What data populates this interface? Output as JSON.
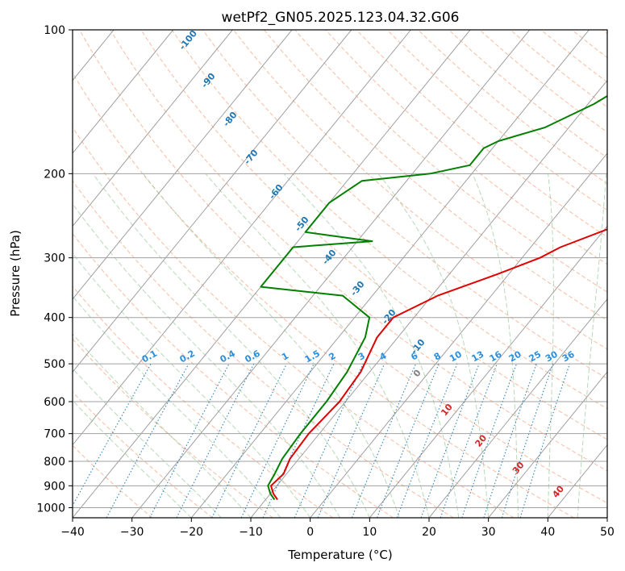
{
  "chart_data": {
    "type": "line",
    "title": "wetPf2_GN05.2025.123.04.32.G06",
    "xlabel": "Temperature (°C)",
    "ylabel": "Pressure (hPa)",
    "xlim": [
      -40,
      50
    ],
    "ylim": [
      1050,
      100
    ],
    "y_scale": "log",
    "grid": true,
    "x_ticks": [
      "−40",
      "−30",
      "−20",
      "−10",
      "0",
      "10",
      "20",
      "30",
      "40",
      "50"
    ],
    "x_tick_values": [
      -40,
      -30,
      -20,
      -10,
      0,
      10,
      20,
      30,
      40,
      50
    ],
    "y_ticks": [
      "100",
      "200",
      "300",
      "400",
      "500",
      "600",
      "700",
      "800",
      "900",
      "1000"
    ],
    "y_tick_values": [
      100,
      200,
      300,
      400,
      500,
      600,
      700,
      800,
      900,
      1000
    ],
    "colors": {
      "temperature": "#e00000",
      "dewpoint": "#008000",
      "dry_adiabat": "#f4a582",
      "moist_adiabat": "#92c592",
      "mixing_ratio": "#3182bd",
      "isotherm_grid": "#a0a0a0",
      "isotherm_label": "#1f77b4",
      "high_isotherm_label": "#d62728"
    },
    "series": [
      {
        "key": "temperature",
        "points": [
          [
            -8.0,
            962
          ],
          [
            -9.5,
            935
          ],
          [
            -11.0,
            900
          ],
          [
            -10.5,
            850
          ],
          [
            -11.5,
            790
          ],
          [
            -11.8,
            700
          ],
          [
            -11.0,
            600
          ],
          [
            -11.5,
            520
          ],
          [
            -13.5,
            440
          ],
          [
            -13.5,
            400
          ],
          [
            -9.0,
            360
          ],
          [
            -2.0,
            325
          ],
          [
            3.0,
            300
          ],
          [
            5.0,
            285
          ],
          [
            12.0,
            255
          ],
          [
            19.0,
            233
          ],
          [
            23.0,
            205
          ],
          [
            27.0,
            184
          ],
          [
            30.0,
            164
          ],
          [
            34.0,
            148
          ],
          [
            38.5,
            128
          ],
          [
            40.0,
            120
          ],
          [
            42.5,
            112
          ],
          [
            46.0,
            104
          ],
          [
            48.0,
            100
          ]
        ]
      },
      {
        "key": "dewpoint",
        "points": [
          [
            -8.5,
            962
          ],
          [
            -10.0,
            935
          ],
          [
            -11.5,
            900
          ],
          [
            -12.0,
            850
          ],
          [
            -12.8,
            790
          ],
          [
            -13.2,
            700
          ],
          [
            -13.2,
            600
          ],
          [
            -13.8,
            520
          ],
          [
            -15.5,
            440
          ],
          [
            -17.5,
            400
          ],
          [
            -25.0,
            360
          ],
          [
            -40.0,
            345
          ],
          [
            -40.0,
            285
          ],
          [
            -27.5,
            277
          ],
          [
            -40.0,
            265
          ],
          [
            -40.0,
            230
          ],
          [
            -37.5,
            207
          ],
          [
            -27.0,
            200
          ],
          [
            -21.5,
            192
          ],
          [
            -21.5,
            177
          ],
          [
            -20.0,
            171
          ],
          [
            -14.0,
            160
          ],
          [
            -9.0,
            143
          ],
          [
            -5.0,
            125
          ],
          [
            -1.0,
            110
          ],
          [
            2.0,
            100
          ]
        ]
      }
    ],
    "isotherm_labels": [
      "-100",
      "-90",
      "-80",
      "-70",
      "-60",
      "-50",
      "-40",
      "-30",
      "-20",
      "-10",
      "0",
      "10",
      "20",
      "30",
      "40"
    ],
    "isotherm_label_values": [
      -100,
      -90,
      -80,
      -70,
      -60,
      -50,
      -40,
      -30,
      -20,
      -10,
      0,
      10,
      20,
      30,
      40
    ],
    "mixing_ratio_labels": [
      "0.1",
      "0.2",
      "0.4",
      "0.6",
      "1",
      "1.5",
      "2",
      "3",
      "4",
      "6",
      "8",
      "10",
      "13",
      "16",
      "20",
      "25",
      "30",
      "36"
    ],
    "mixing_ratio_values": [
      0.1,
      0.2,
      0.4,
      0.6,
      1,
      1.5,
      2,
      3,
      4,
      6,
      8,
      10,
      13,
      16,
      20,
      25,
      30,
      36
    ]
  }
}
